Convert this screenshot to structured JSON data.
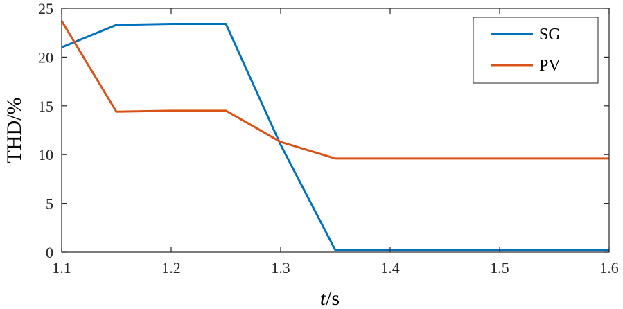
{
  "chart_data": {
    "type": "line",
    "xlabel_italic": "t",
    "xlabel_unit": "/s",
    "ylabel": "THD/%",
    "xlim": [
      1.1,
      1.6
    ],
    "ylim": [
      0,
      25
    ],
    "xticks": [
      "1.1",
      "1.2",
      "1.3",
      "1.4",
      "1.5",
      "1.6"
    ],
    "yticks": [
      "0",
      "5",
      "10",
      "15",
      "20",
      "25"
    ],
    "grid": false,
    "legend_position": "top-right",
    "series": [
      {
        "name": "SG",
        "color": "#0072BD",
        "points": [
          [
            1.1,
            21.0
          ],
          [
            1.15,
            23.3
          ],
          [
            1.2,
            23.4
          ],
          [
            1.25,
            23.4
          ],
          [
            1.3,
            11.0
          ],
          [
            1.35,
            0.2
          ],
          [
            1.6,
            0.2
          ]
        ]
      },
      {
        "name": "PV",
        "color": "#D95319",
        "points": [
          [
            1.1,
            23.7
          ],
          [
            1.15,
            14.4
          ],
          [
            1.2,
            14.5
          ],
          [
            1.25,
            14.5
          ],
          [
            1.3,
            11.3
          ],
          [
            1.35,
            9.6
          ],
          [
            1.6,
            9.6
          ]
        ]
      }
    ]
  }
}
